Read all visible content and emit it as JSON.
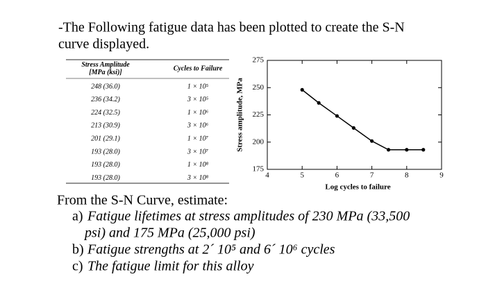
{
  "intro": [
    "-The Following fatigue data has been plotted to create the S-N",
    "curve displayed."
  ],
  "table": {
    "headers": [
      [
        "Stress Amplitude",
        "[MPa (ksi)]"
      ],
      [
        "Cycles to Failure"
      ]
    ],
    "rows": [
      [
        "248 (36.0)",
        "1 × 10⁵"
      ],
      [
        "236 (34.2)",
        "3 × 10⁵"
      ],
      [
        "224 (32.5)",
        "1 × 10⁶"
      ],
      [
        "213 (30.9)",
        "3 × 10⁶"
      ],
      [
        "201 (29.1)",
        "1 × 10⁷"
      ],
      [
        "193 (28.0)",
        "3 × 10⁷"
      ],
      [
        "193 (28.0)",
        "1 × 10⁸"
      ],
      [
        "193 (28.0)",
        "3 × 10⁸"
      ]
    ]
  },
  "chart_data": {
    "type": "line",
    "x_label": "Log cycles to failure",
    "y_label": "Stress amplitude, MPa",
    "x": [
      5,
      5.477,
      6,
      6.477,
      7,
      7.477,
      8,
      8.477
    ],
    "values": [
      248,
      236,
      224,
      213,
      201,
      193,
      193,
      193
    ],
    "color": "#000000",
    "xlim": [
      4,
      9
    ],
    "xticks": [
      4,
      5,
      6,
      7,
      8,
      9
    ],
    "ylim": [
      175,
      275
    ],
    "yticks": [
      175,
      200,
      225,
      250,
      275
    ]
  },
  "questions": {
    "heading": "From the S-N Curve, estimate:",
    "items": [
      {
        "label": "a)",
        "lines": [
          "Fatigue lifetimes at stress amplitudes of 230 MPa (33,500",
          "psi) and 175 MPa (25,000 psi)"
        ]
      },
      {
        "label": "b)",
        "lines": [
          "Fatigue strengths at 2´ 10⁵ and 6´ 10⁶ cycles"
        ]
      },
      {
        "label": "c)",
        "lines": [
          "The fatigue limit for this alloy"
        ]
      }
    ]
  }
}
